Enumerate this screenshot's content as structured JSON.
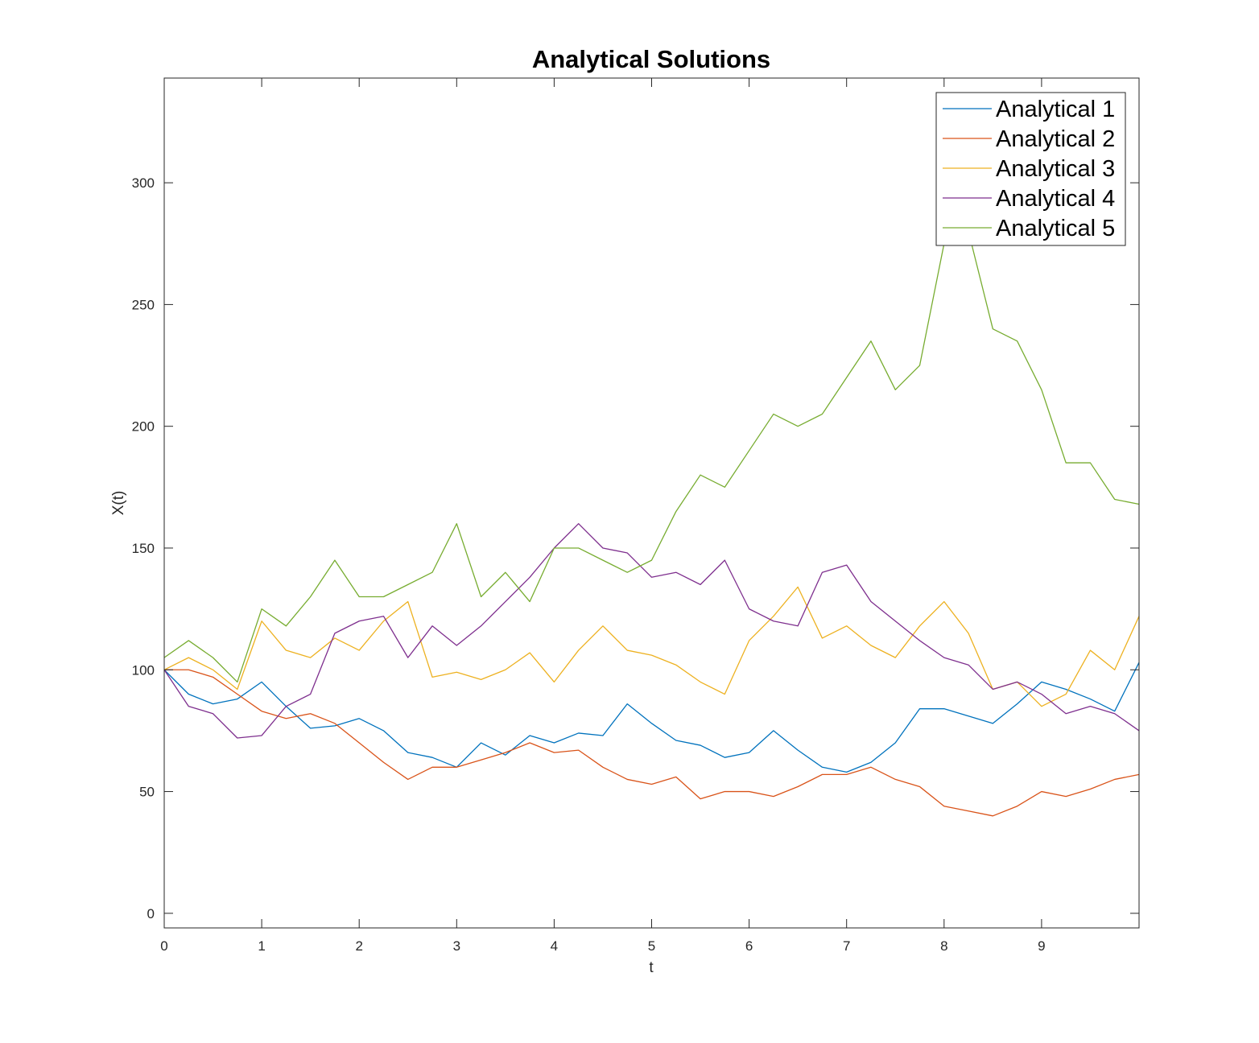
{
  "chart_data": {
    "type": "line",
    "title": "Analytical Solutions",
    "xlabel": "t",
    "ylabel": "X(t)",
    "xlim": [
      0,
      10
    ],
    "ylim": [
      -6,
      343
    ],
    "xticks": [
      0,
      1,
      2,
      3,
      4,
      5,
      6,
      7,
      8,
      9
    ],
    "yticks": [
      0,
      50,
      100,
      150,
      200,
      250,
      300
    ],
    "grid": false,
    "legend_position": "top-right",
    "series": [
      {
        "name": "Analytical 1",
        "color": "#0072BD",
        "x": [
          0,
          0.25,
          0.5,
          0.75,
          1.0,
          1.25,
          1.5,
          1.75,
          2.0,
          2.25,
          2.5,
          2.75,
          3.0,
          3.25,
          3.5,
          3.75,
          4.0,
          4.25,
          4.5,
          4.75,
          5.0,
          5.25,
          5.5,
          5.75,
          6.0,
          6.25,
          6.5,
          6.75,
          7.0,
          7.25,
          7.5,
          7.75,
          8.0,
          8.25,
          8.5,
          8.75,
          9.0,
          9.25,
          9.5,
          9.75,
          10.0
        ],
        "y": [
          100,
          90,
          86,
          88,
          95,
          85,
          76,
          77,
          80,
          75,
          66,
          64,
          60,
          70,
          65,
          73,
          70,
          74,
          73,
          86,
          78,
          71,
          69,
          64,
          66,
          75,
          67,
          60,
          58,
          62,
          70,
          84,
          84,
          81,
          78,
          86,
          95,
          92,
          88,
          83,
          103
        ]
      },
      {
        "name": "Analytical 2",
        "color": "#D95319",
        "x": [
          0,
          0.25,
          0.5,
          0.75,
          1.0,
          1.25,
          1.5,
          1.75,
          2.0,
          2.25,
          2.5,
          2.75,
          3.0,
          3.25,
          3.5,
          3.75,
          4.0,
          4.25,
          4.5,
          4.75,
          5.0,
          5.25,
          5.5,
          5.75,
          6.0,
          6.25,
          6.5,
          6.75,
          7.0,
          7.25,
          7.5,
          7.75,
          8.0,
          8.25,
          8.5,
          8.75,
          9.0,
          9.25,
          9.5,
          9.75,
          10.0
        ],
        "y": [
          100,
          100,
          97,
          90,
          83,
          80,
          82,
          78,
          70,
          62,
          55,
          60,
          60,
          63,
          66,
          70,
          66,
          67,
          60,
          55,
          53,
          56,
          47,
          50,
          50,
          48,
          52,
          57,
          57,
          60,
          55,
          52,
          44,
          42,
          40,
          44,
          50,
          48,
          51,
          55,
          57
        ]
      },
      {
        "name": "Analytical 3",
        "color": "#EDB120",
        "x": [
          0,
          0.25,
          0.5,
          0.75,
          1.0,
          1.25,
          1.5,
          1.75,
          2.0,
          2.25,
          2.5,
          2.75,
          3.0,
          3.25,
          3.5,
          3.75,
          4.0,
          4.25,
          4.5,
          4.75,
          5.0,
          5.25,
          5.5,
          5.75,
          6.0,
          6.25,
          6.5,
          6.75,
          7.0,
          7.25,
          7.5,
          7.75,
          8.0,
          8.25,
          8.5,
          8.75,
          9.0,
          9.25,
          9.5,
          9.75,
          10.0
        ],
        "y": [
          100,
          105,
          100,
          92,
          120,
          108,
          105,
          113,
          108,
          120,
          128,
          97,
          99,
          96,
          100,
          107,
          95,
          108,
          118,
          108,
          106,
          102,
          95,
          90,
          112,
          122,
          134,
          113,
          118,
          110,
          105,
          118,
          128,
          115,
          92,
          95,
          85,
          90,
          108,
          100,
          122
        ]
      },
      {
        "name": "Analytical 4",
        "color": "#7E2F8E",
        "x": [
          0,
          0.25,
          0.5,
          0.75,
          1.0,
          1.25,
          1.5,
          1.75,
          2.0,
          2.25,
          2.5,
          2.75,
          3.0,
          3.25,
          3.5,
          3.75,
          4.0,
          4.25,
          4.5,
          4.75,
          5.0,
          5.25,
          5.5,
          5.75,
          6.0,
          6.25,
          6.5,
          6.75,
          7.0,
          7.25,
          7.5,
          7.75,
          8.0,
          8.25,
          8.5,
          8.75,
          9.0,
          9.25,
          9.5,
          9.75,
          10.0
        ],
        "y": [
          100,
          85,
          82,
          72,
          73,
          85,
          90,
          115,
          120,
          122,
          105,
          118,
          110,
          118,
          128,
          138,
          150,
          160,
          150,
          148,
          138,
          140,
          135,
          145,
          125,
          120,
          118,
          140,
          143,
          128,
          120,
          112,
          105,
          102,
          92,
          95,
          90,
          82,
          85,
          82,
          75
        ]
      },
      {
        "name": "Analytical 5",
        "color": "#77AC30",
        "x": [
          0,
          0.25,
          0.5,
          0.75,
          1.0,
          1.25,
          1.5,
          1.75,
          2.0,
          2.25,
          2.5,
          2.75,
          3.0,
          3.25,
          3.5,
          3.75,
          4.0,
          4.25,
          4.5,
          4.75,
          5.0,
          5.25,
          5.5,
          5.75,
          6.0,
          6.25,
          6.5,
          6.75,
          7.0,
          7.25,
          7.5,
          7.75,
          8.0,
          8.25,
          8.5,
          8.75,
          9.0,
          9.25,
          9.5,
          9.75,
          10.0
        ],
        "y": [
          105,
          112,
          105,
          95,
          125,
          118,
          130,
          145,
          130,
          130,
          135,
          140,
          160,
          130,
          140,
          128,
          150,
          150,
          145,
          140,
          145,
          165,
          180,
          175,
          190,
          205,
          200,
          205,
          220,
          235,
          215,
          225,
          275,
          280,
          240,
          235,
          215,
          185,
          185,
          170,
          168
        ]
      }
    ]
  }
}
